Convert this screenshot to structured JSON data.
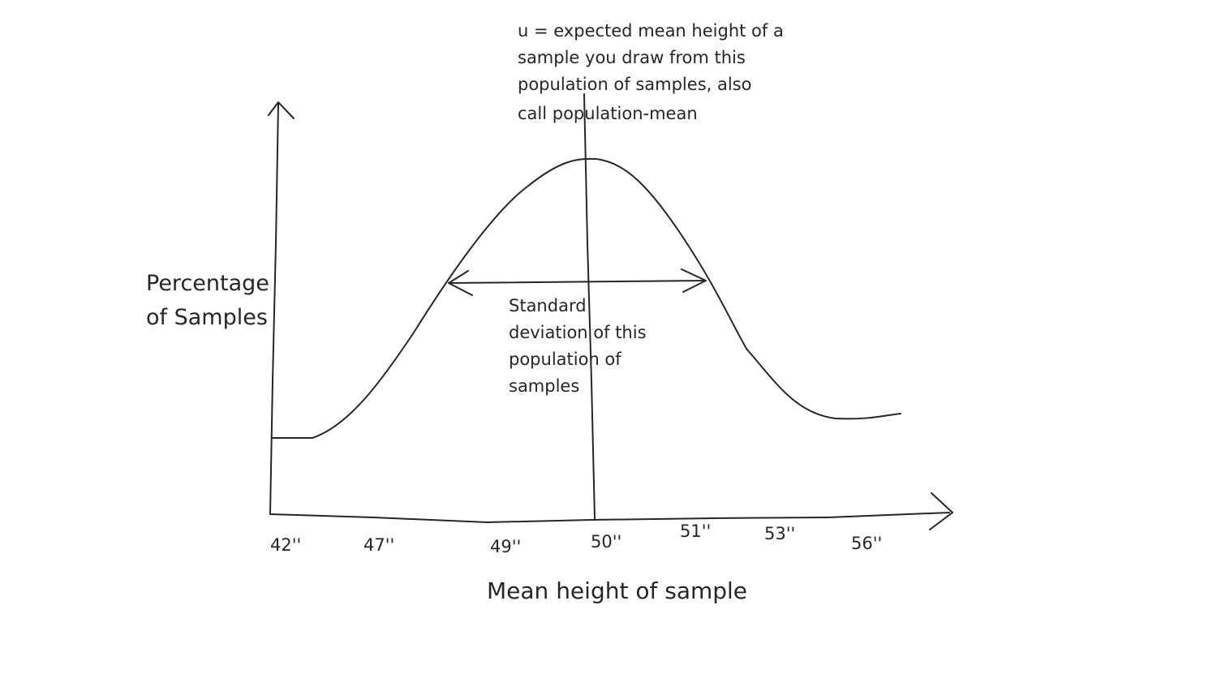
{
  "diagram": {
    "type": "hand-drawn bell curve (sampling distribution)",
    "y_axis_label": [
      "Percentage",
      "of Samples"
    ],
    "x_axis_label": "Mean height of sample",
    "x_ticks": [
      "42''",
      "47''",
      "49''",
      "50''",
      "51''",
      "53''",
      "56''"
    ],
    "mean_annotation": [
      "u = expected mean height of a",
      "sample you draw from this",
      "population of samples, also",
      "call population-mean"
    ],
    "sd_annotation": [
      "Standard",
      "deviation of this",
      "population of",
      "samples"
    ],
    "ink_color": "#262626"
  }
}
